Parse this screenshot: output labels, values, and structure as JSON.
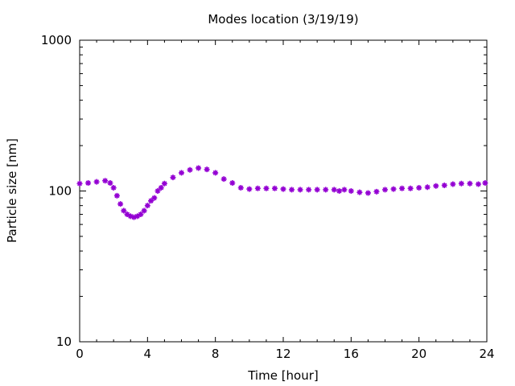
{
  "chart_data": {
    "type": "scatter",
    "title": "Modes location (3/19/19)",
    "xlabel": "Time [hour]",
    "ylabel": "Particle size [nm]",
    "xlim": [
      0,
      24
    ],
    "ylim": [
      10,
      1000
    ],
    "yscale": "log",
    "xticks": [
      0,
      4,
      8,
      12,
      16,
      20,
      24
    ],
    "xtick_labels": [
      "0",
      "4",
      "8",
      "12",
      "16",
      "20",
      "24"
    ],
    "yticks": [
      10,
      100,
      1000
    ],
    "ytick_labels": [
      "10",
      "100",
      "1000"
    ],
    "grid": false,
    "legend": "none",
    "marker": "star",
    "color": "#9400D3",
    "series": [
      {
        "x": [
          0,
          0.5,
          1,
          1.5,
          1.8,
          2.0,
          2.2,
          2.4,
          2.6,
          2.8,
          3.0,
          3.2,
          3.4,
          3.6,
          3.8,
          4.0,
          4.2,
          4.4,
          4.6,
          4.8,
          5.0,
          5.5,
          6.0,
          6.5,
          7.0,
          7.5,
          8.0,
          8.5,
          9.0,
          9.5,
          10.0,
          10.5,
          11.0,
          11.5,
          12.0,
          12.5,
          13.0,
          13.5,
          14.0,
          14.5,
          15.0,
          15.3,
          15.6,
          16.0,
          16.5,
          17.0,
          17.5,
          18.0,
          18.5,
          19.0,
          19.5,
          20.0,
          20.5,
          21.0,
          21.5,
          22.0,
          22.5,
          23.0,
          23.5,
          23.9
        ],
        "y": [
          112,
          113,
          115,
          117,
          113,
          105,
          93,
          82,
          74,
          70,
          68,
          67,
          68,
          70,
          74,
          80,
          86,
          90,
          100,
          105,
          112,
          123,
          132,
          138,
          142,
          139,
          132,
          120,
          113,
          105,
          103,
          104,
          104,
          104,
          103,
          102,
          102,
          102,
          102,
          102,
          102,
          100,
          102,
          100,
          98,
          97,
          99,
          102,
          103,
          104,
          104,
          105,
          106,
          108,
          109,
          111,
          112,
          112,
          111,
          113
        ]
      }
    ]
  }
}
